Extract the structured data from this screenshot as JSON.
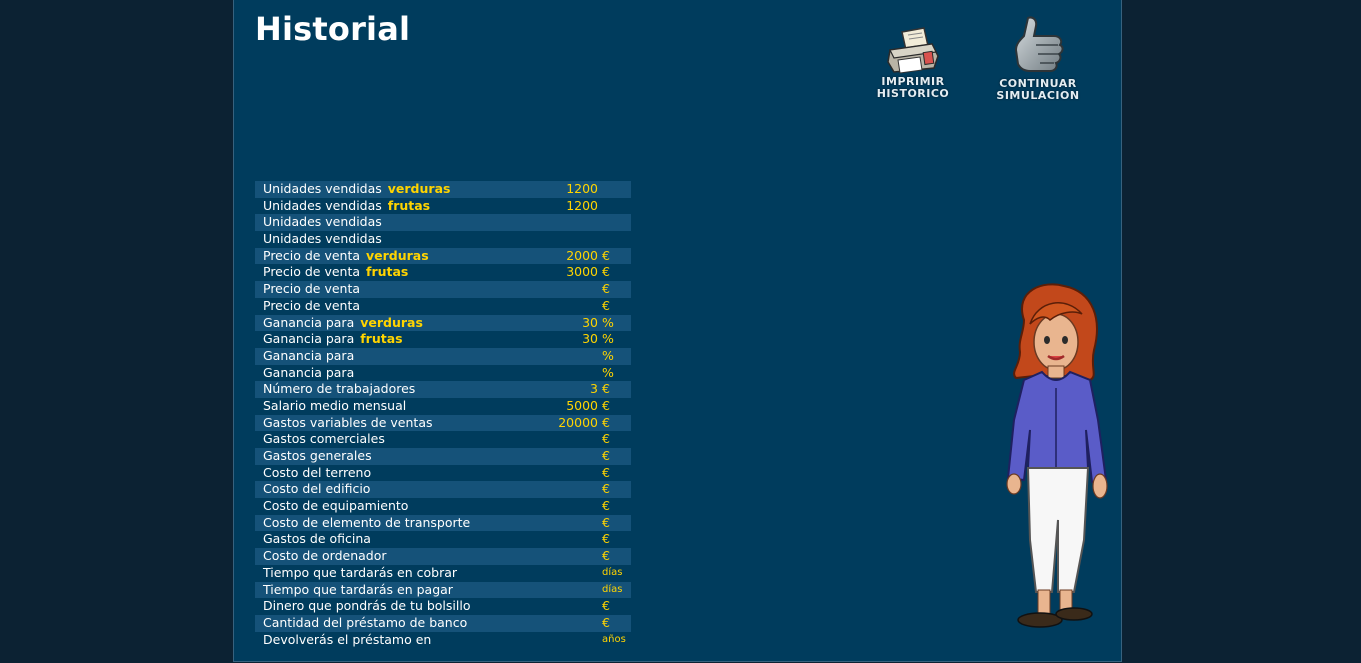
{
  "header": {
    "title": "Historial",
    "print_label_1": "IMPRIMIR",
    "print_label_2": "HISTORICO",
    "continue_label_1": "CONTINUAR",
    "continue_label_2": "SIMULACION"
  },
  "icons": {
    "print": "printer-icon",
    "continue": "thumbs-up-icon",
    "character": "woman-character-illustration"
  },
  "colors": {
    "background": "#0c2233",
    "panel": "#003c5d",
    "stripe": "#155279",
    "highlight": "#ffd400"
  },
  "rows": [
    {
      "label": "Unidades vendidas",
      "highlight": "verduras",
      "value": "1200",
      "unit": ""
    },
    {
      "label": "Unidades vendidas",
      "highlight": "frutas",
      "value": "1200",
      "unit": ""
    },
    {
      "label": "Unidades vendidas",
      "highlight": "",
      "value": "",
      "unit": ""
    },
    {
      "label": "Unidades vendidas",
      "highlight": "",
      "value": "",
      "unit": ""
    },
    {
      "label": "Precio de venta",
      "highlight": "verduras",
      "value": "2000",
      "unit": "€"
    },
    {
      "label": "Precio de venta",
      "highlight": "frutas",
      "value": "3000",
      "unit": "€"
    },
    {
      "label": "Precio de venta",
      "highlight": "",
      "value": "",
      "unit": "€"
    },
    {
      "label": "Precio de venta",
      "highlight": "",
      "value": "",
      "unit": "€"
    },
    {
      "label": "Ganancia para",
      "highlight": "verduras",
      "value": "30",
      "unit": "%"
    },
    {
      "label": "Ganancia para",
      "highlight": "frutas",
      "value": "30",
      "unit": "%"
    },
    {
      "label": "Ganancia para",
      "highlight": "",
      "value": "",
      "unit": "%"
    },
    {
      "label": "Ganancia para",
      "highlight": "",
      "value": "",
      "unit": "%"
    },
    {
      "label": "Número de trabajadores",
      "highlight": "",
      "value": "3",
      "unit": "€"
    },
    {
      "label": "Salario medio mensual",
      "highlight": "",
      "value": "5000",
      "unit": "€"
    },
    {
      "label": "Gastos variables de ventas",
      "highlight": "",
      "value": "20000",
      "unit": "€"
    },
    {
      "label": "Gastos comerciales",
      "highlight": "",
      "value": "",
      "unit": "€"
    },
    {
      "label": "Gastos generales",
      "highlight": "",
      "value": "",
      "unit": "€"
    },
    {
      "label": "Costo del terreno",
      "highlight": "",
      "value": "",
      "unit": "€"
    },
    {
      "label": "Costo del edificio",
      "highlight": "",
      "value": "",
      "unit": "€"
    },
    {
      "label": "Costo de equipamiento",
      "highlight": "",
      "value": "",
      "unit": "€"
    },
    {
      "label": "Costo de elemento de transporte",
      "highlight": "",
      "value": "",
      "unit": "€"
    },
    {
      "label": "Gastos de oficina",
      "highlight": "",
      "value": "",
      "unit": "€"
    },
    {
      "label": "Costo de ordenador",
      "highlight": "",
      "value": "",
      "unit": "€"
    },
    {
      "label": "Tiempo que tardarás en cobrar",
      "highlight": "",
      "value": "",
      "unit": "días"
    },
    {
      "label": "Tiempo que tardarás en pagar",
      "highlight": "",
      "value": "",
      "unit": "días"
    },
    {
      "label": "Dinero que pondrás de tu bolsillo",
      "highlight": "",
      "value": "",
      "unit": "€"
    },
    {
      "label": "Cantidad del préstamo de banco",
      "highlight": "",
      "value": "",
      "unit": "€"
    },
    {
      "label": "Devolverás el préstamo en",
      "highlight": "",
      "value": "",
      "unit": "años"
    }
  ]
}
